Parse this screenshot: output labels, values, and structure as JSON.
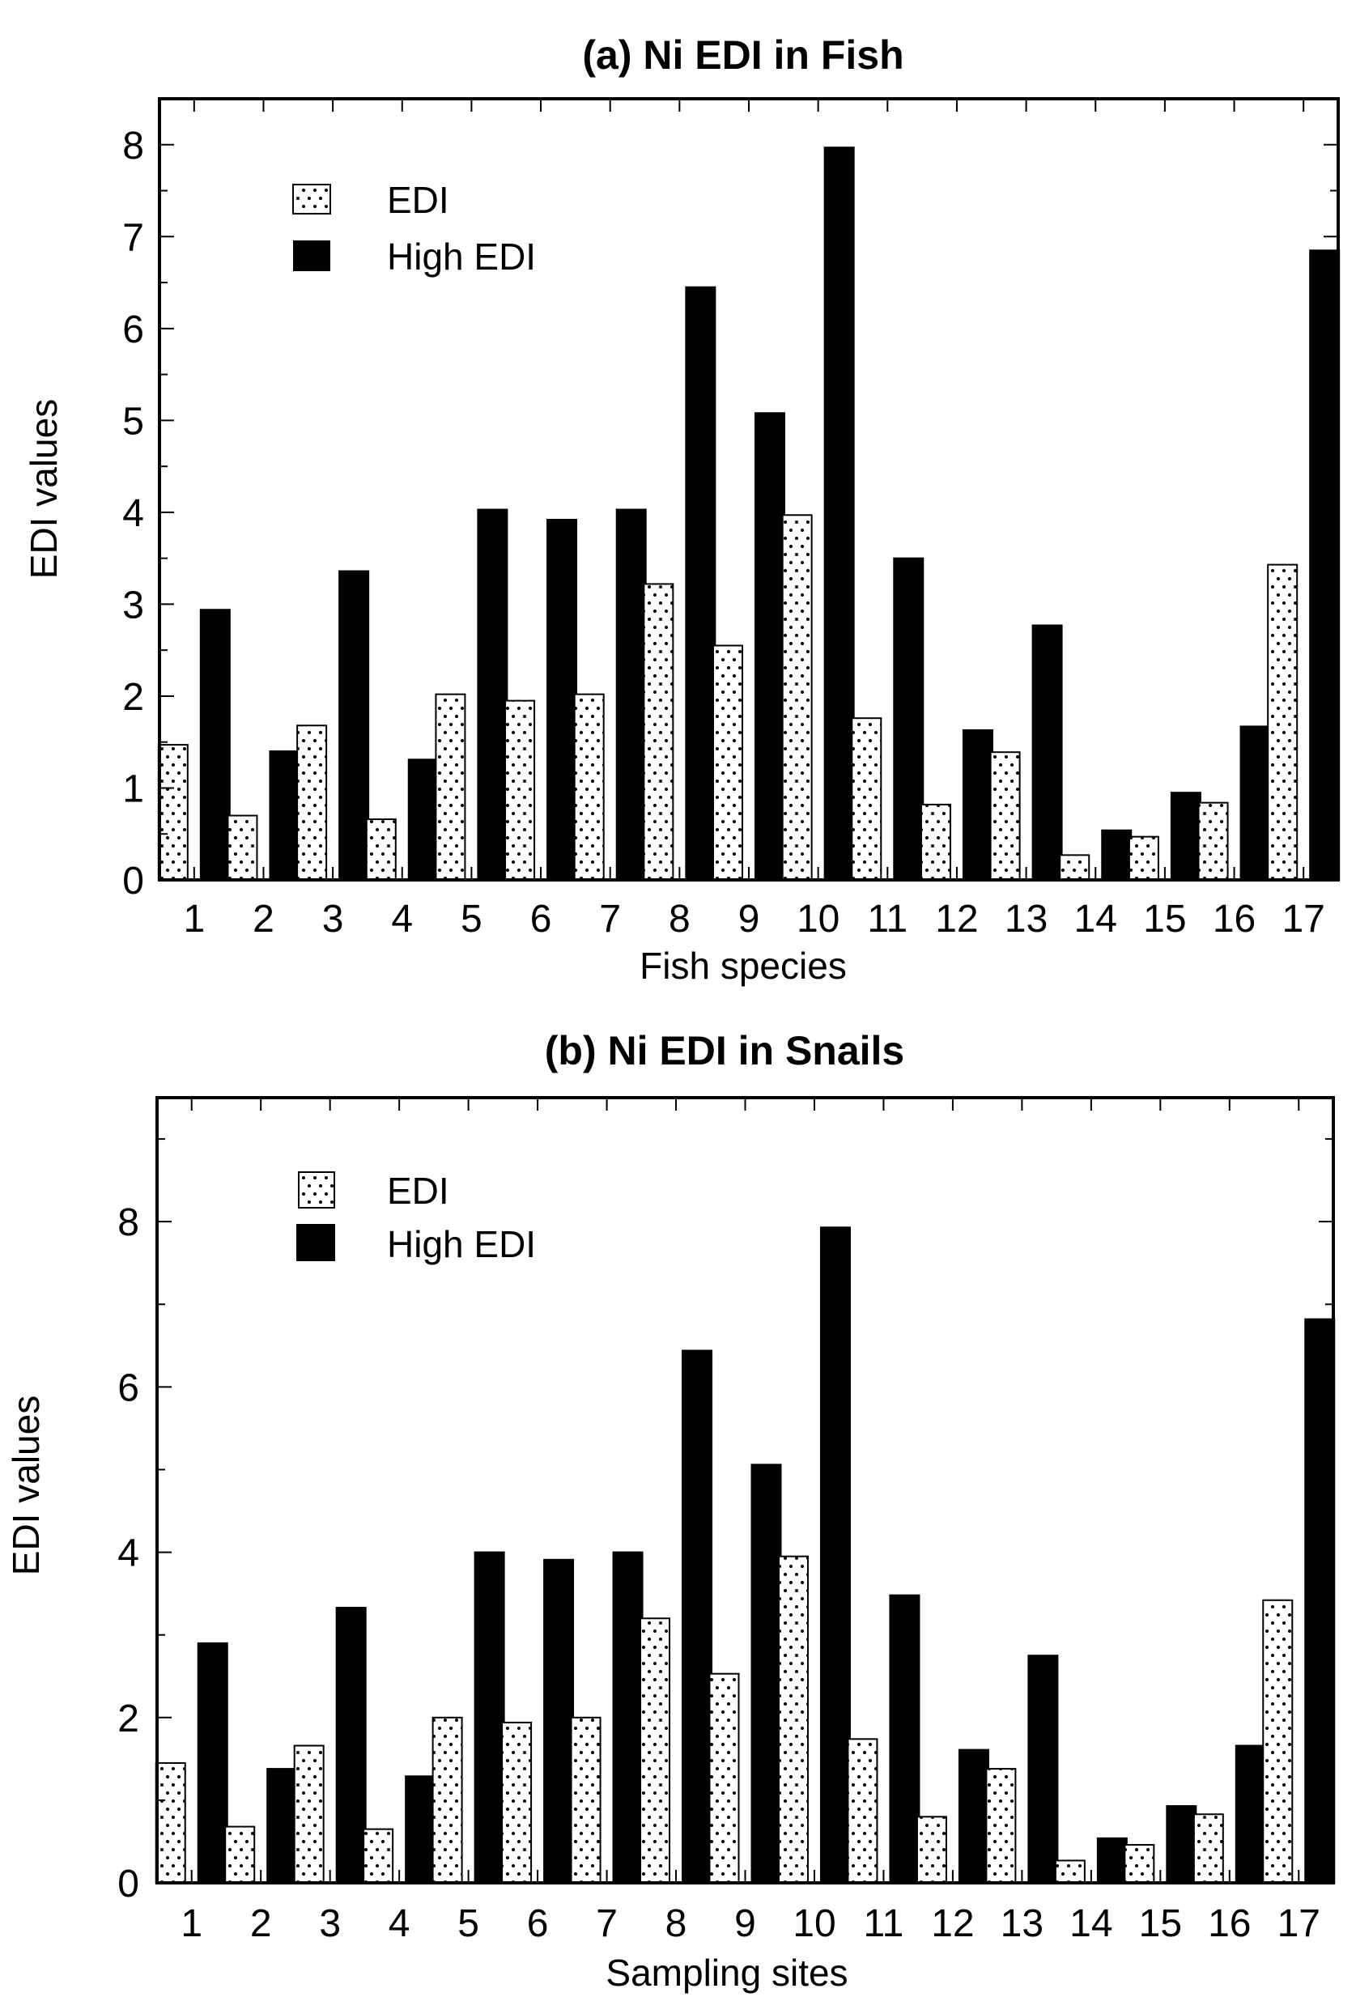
{
  "chart_data": [
    {
      "type": "bar",
      "title": "(a) Ni EDI in Fish",
      "xlabel": "Fish species",
      "ylabel": "EDI values",
      "ylim": [
        0,
        8.5
      ],
      "yticks": [
        "0",
        "1",
        "2",
        "3",
        "4",
        "5",
        "6",
        "7",
        "8"
      ],
      "categories": [
        "1",
        "2",
        "3",
        "4",
        "5",
        "6",
        "7",
        "8",
        "9",
        "10",
        "11",
        "12",
        "13",
        "14",
        "15",
        "16",
        "17"
      ],
      "legend_position": "top-left",
      "series": [
        {
          "name": "EDI",
          "pattern": "dotted",
          "values": [
            1.47,
            0.7,
            1.68,
            0.66,
            2.02,
            1.95,
            2.02,
            3.22,
            2.55,
            3.97,
            1.76,
            0.82,
            1.39,
            0.27,
            0.47,
            0.84,
            3.43
          ]
        },
        {
          "name": "High EDI",
          "pattern": "solid",
          "values": [
            2.94,
            1.4,
            3.36,
            1.31,
            4.03,
            3.92,
            4.03,
            6.45,
            5.08,
            7.97,
            3.5,
            1.63,
            2.77,
            0.54,
            0.95,
            1.67,
            6.85
          ]
        }
      ],
      "colors": {
        "solid": "#000000",
        "outline": "#000000",
        "background": "#ffffff"
      }
    },
    {
      "type": "bar",
      "title": "(b) Ni EDI in Snails",
      "xlabel": "Sampling sites",
      "ylabel": "EDI values",
      "ylim": [
        0,
        9.5
      ],
      "yticks": [
        "0",
        "2",
        "4",
        "6",
        "8"
      ],
      "categories": [
        "1",
        "2",
        "3",
        "4",
        "5",
        "6",
        "7",
        "8",
        "9",
        "10",
        "11",
        "12",
        "13",
        "14",
        "15",
        "16",
        "17"
      ],
      "legend_position": "top-left",
      "series": [
        {
          "name": "EDI",
          "pattern": "dotted",
          "values": [
            1.45,
            0.68,
            1.66,
            0.65,
            2.0,
            1.94,
            2.0,
            3.2,
            2.53,
            3.95,
            1.74,
            0.8,
            1.38,
            0.27,
            0.46,
            0.83,
            3.42
          ]
        },
        {
          "name": "High EDI",
          "pattern": "solid",
          "values": [
            2.9,
            1.38,
            3.33,
            1.29,
            4.0,
            3.91,
            4.0,
            6.44,
            5.06,
            7.93,
            3.48,
            1.61,
            2.75,
            0.54,
            0.93,
            1.66,
            6.82
          ]
        }
      ],
      "colors": {
        "solid": "#000000",
        "outline": "#000000",
        "background": "#ffffff"
      }
    }
  ]
}
